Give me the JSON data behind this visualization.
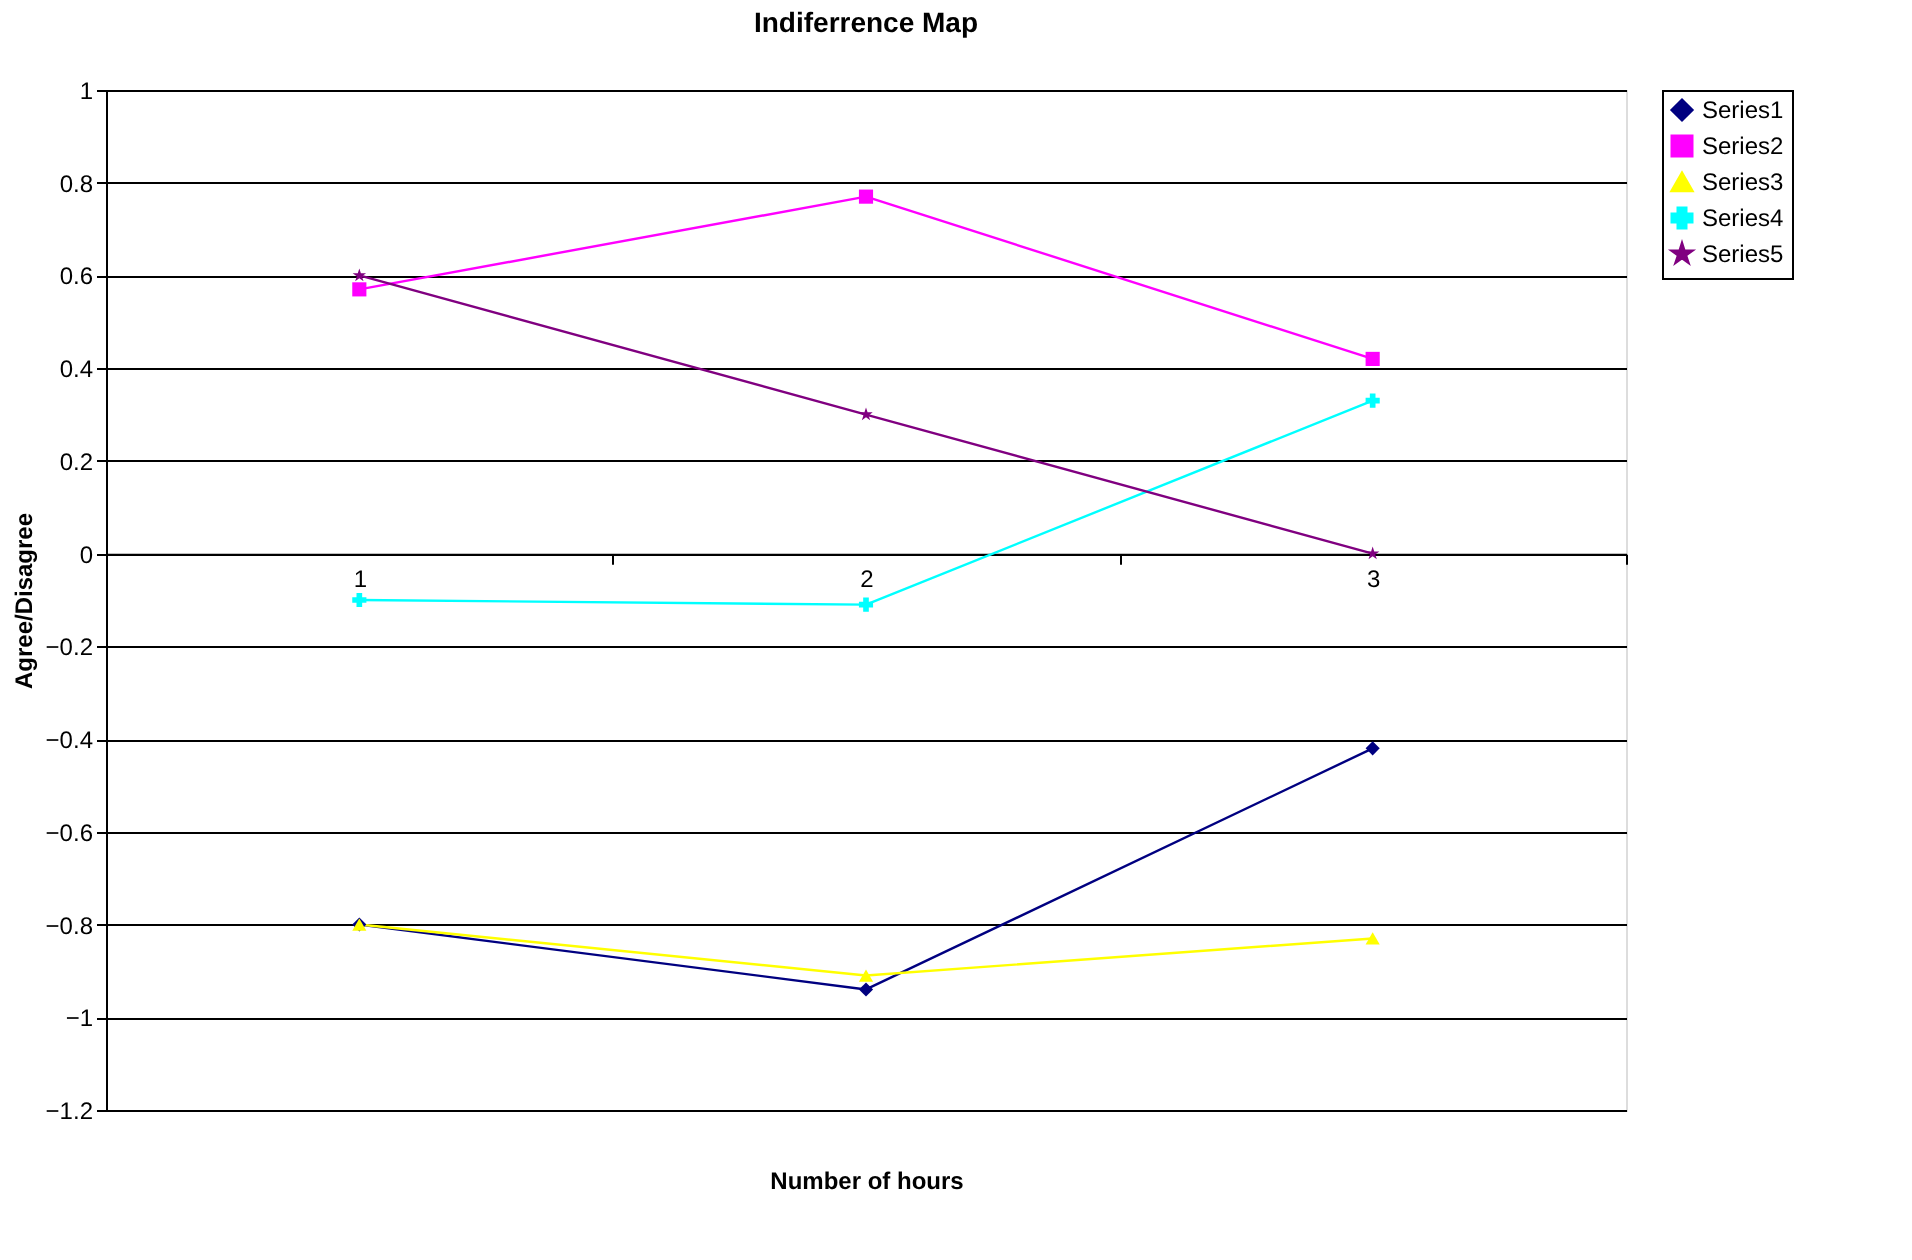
{
  "chart_data": {
    "type": "line",
    "title": "Indiferrence Map",
    "xlabel": "Number of hours",
    "ylabel": "Agree/Disagree",
    "categories": [
      "1",
      "2",
      "3"
    ],
    "series": [
      {
        "name": "Series1",
        "color": "#000080",
        "marker": "diamond",
        "values": [
          -0.8,
          -0.94,
          -0.42
        ]
      },
      {
        "name": "Series2",
        "color": "#ff00ff",
        "marker": "square",
        "values": [
          0.57,
          0.77,
          0.42
        ]
      },
      {
        "name": "Series3",
        "color": "#ffff00",
        "marker": "triangle",
        "values": [
          -0.8,
          -0.91,
          -0.83
        ]
      },
      {
        "name": "Series4",
        "color": "#00ffff",
        "marker": "cross",
        "values": [
          -0.1,
          -0.11,
          0.33
        ]
      },
      {
        "name": "Series5",
        "color": "#800080",
        "marker": "star",
        "values": [
          0.6,
          0.3,
          0.0
        ]
      }
    ],
    "ylim": [
      -1.2,
      1
    ],
    "yticks": [
      -1.2,
      -1,
      -0.8,
      -0.6,
      -0.4,
      -0.2,
      0,
      0.2,
      0.4,
      0.6,
      0.8,
      1
    ],
    "grid": "y",
    "legend": "right",
    "line_style": "solid"
  }
}
